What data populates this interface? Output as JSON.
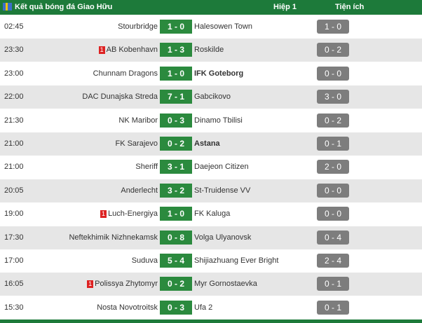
{
  "header": {
    "title": "Kết quả bóng đá Giao Hữu",
    "half": "Hiệp 1",
    "tools": "Tiện ích"
  },
  "rows": [
    {
      "time": "02:45",
      "home": "Stourbridge",
      "score": "1 - 0",
      "away": "Halesowen Town",
      "half": "1 - 0"
    },
    {
      "time": "23:30",
      "home": "AB Kobenhavn",
      "home_card": "1",
      "score": "1 - 3",
      "away": "Roskilde",
      "half": "0 - 2"
    },
    {
      "time": "23:00",
      "home": "Chunnam Dragons",
      "score": "1 - 0",
      "away": "IFK Goteborg",
      "away_bold": true,
      "half": "0 - 0"
    },
    {
      "time": "22:00",
      "home": "DAC Dunajska Streda",
      "score": "7 - 1",
      "away": "Gabcikovo",
      "half": "3 - 0"
    },
    {
      "time": "21:30",
      "home": "NK Maribor",
      "score": "0 - 3",
      "away": "Dinamo Tbilisi",
      "half": "0 - 2"
    },
    {
      "time": "21:00",
      "home": "FK Sarajevo",
      "score": "0 - 2",
      "away": "Astana",
      "away_bold": true,
      "half": "0 - 1"
    },
    {
      "time": "21:00",
      "home": "Sheriff",
      "score": "3 - 1",
      "away": "Daejeon Citizen",
      "half": "2 - 0"
    },
    {
      "time": "20:05",
      "home": "Anderlecht",
      "score": "3 - 2",
      "away": "St-Truidense VV",
      "half": "0 - 0"
    },
    {
      "time": "19:00",
      "home": "Luch-Energiya",
      "home_card": "1",
      "score": "1 - 0",
      "away": "FK Kaluga",
      "half": "0 - 0"
    },
    {
      "time": "17:30",
      "home": "Neftekhimik Nizhnekamsk",
      "score": "0 - 8",
      "away": "Volga Ulyanovsk",
      "half": "0 - 4"
    },
    {
      "time": "17:00",
      "home": "Suduva",
      "score": "5 - 4",
      "away": "Shijiazhuang Ever Bright",
      "half": "2 - 4"
    },
    {
      "time": "16:05",
      "home": "Polissya Zhytomyr",
      "home_card": "1",
      "score": "0 - 2",
      "away": "Myr Gornostaevka",
      "half": "0 - 1"
    },
    {
      "time": "15:30",
      "home": "Nosta Novotroitsk",
      "score": "0 - 3",
      "away": "Ufa 2",
      "half": "0 - 1"
    }
  ]
}
